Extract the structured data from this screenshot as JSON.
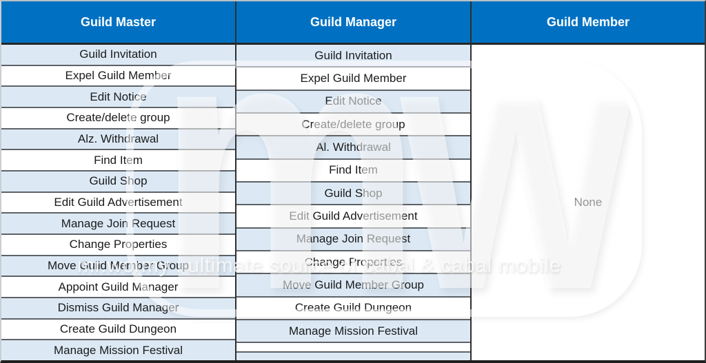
{
  "table": {
    "columns": [
      {
        "header": "Guild Master",
        "rows": [
          "Guild Invitation",
          "Expel Guild Member",
          "Edit Notice",
          "Create/delete group",
          "Alz. Withdrawal",
          "Find Item",
          "Guild Shop",
          "Edit Guild Advertisement",
          "Manage Join Request",
          "Change Properties",
          "Move Guild Member Group",
          "Appoint Guild Manager",
          "Dismiss Guild Manager",
          "Create Guild Dungeon",
          "Manage Mission Festival"
        ]
      },
      {
        "header": "Guild Manager",
        "rows": [
          "Guild Invitation",
          "Expel Guild Member",
          "Edit Notice",
          "Create/delete group",
          "Al. Withdrawal",
          "Find Item",
          "Guild Shop",
          "Edit Guild Advertisement",
          "Manage Join Request",
          "Change Properties",
          "Move Guild Member Group",
          "Create Guild Dungeon",
          "Manage Mission Festival",
          "",
          ""
        ]
      },
      {
        "header": "Guild Member",
        "merged_value": "None"
      }
    ]
  },
  "watermark": {
    "logo_text": "mw",
    "caption": "mr.wormy : ultimate source of cabal & cabal mobile"
  },
  "colors": {
    "header_bg": "#0071c2",
    "header_text": "#ffffff",
    "stripe_bg": "#dce9f5",
    "body_text": "#1a1a1a"
  }
}
